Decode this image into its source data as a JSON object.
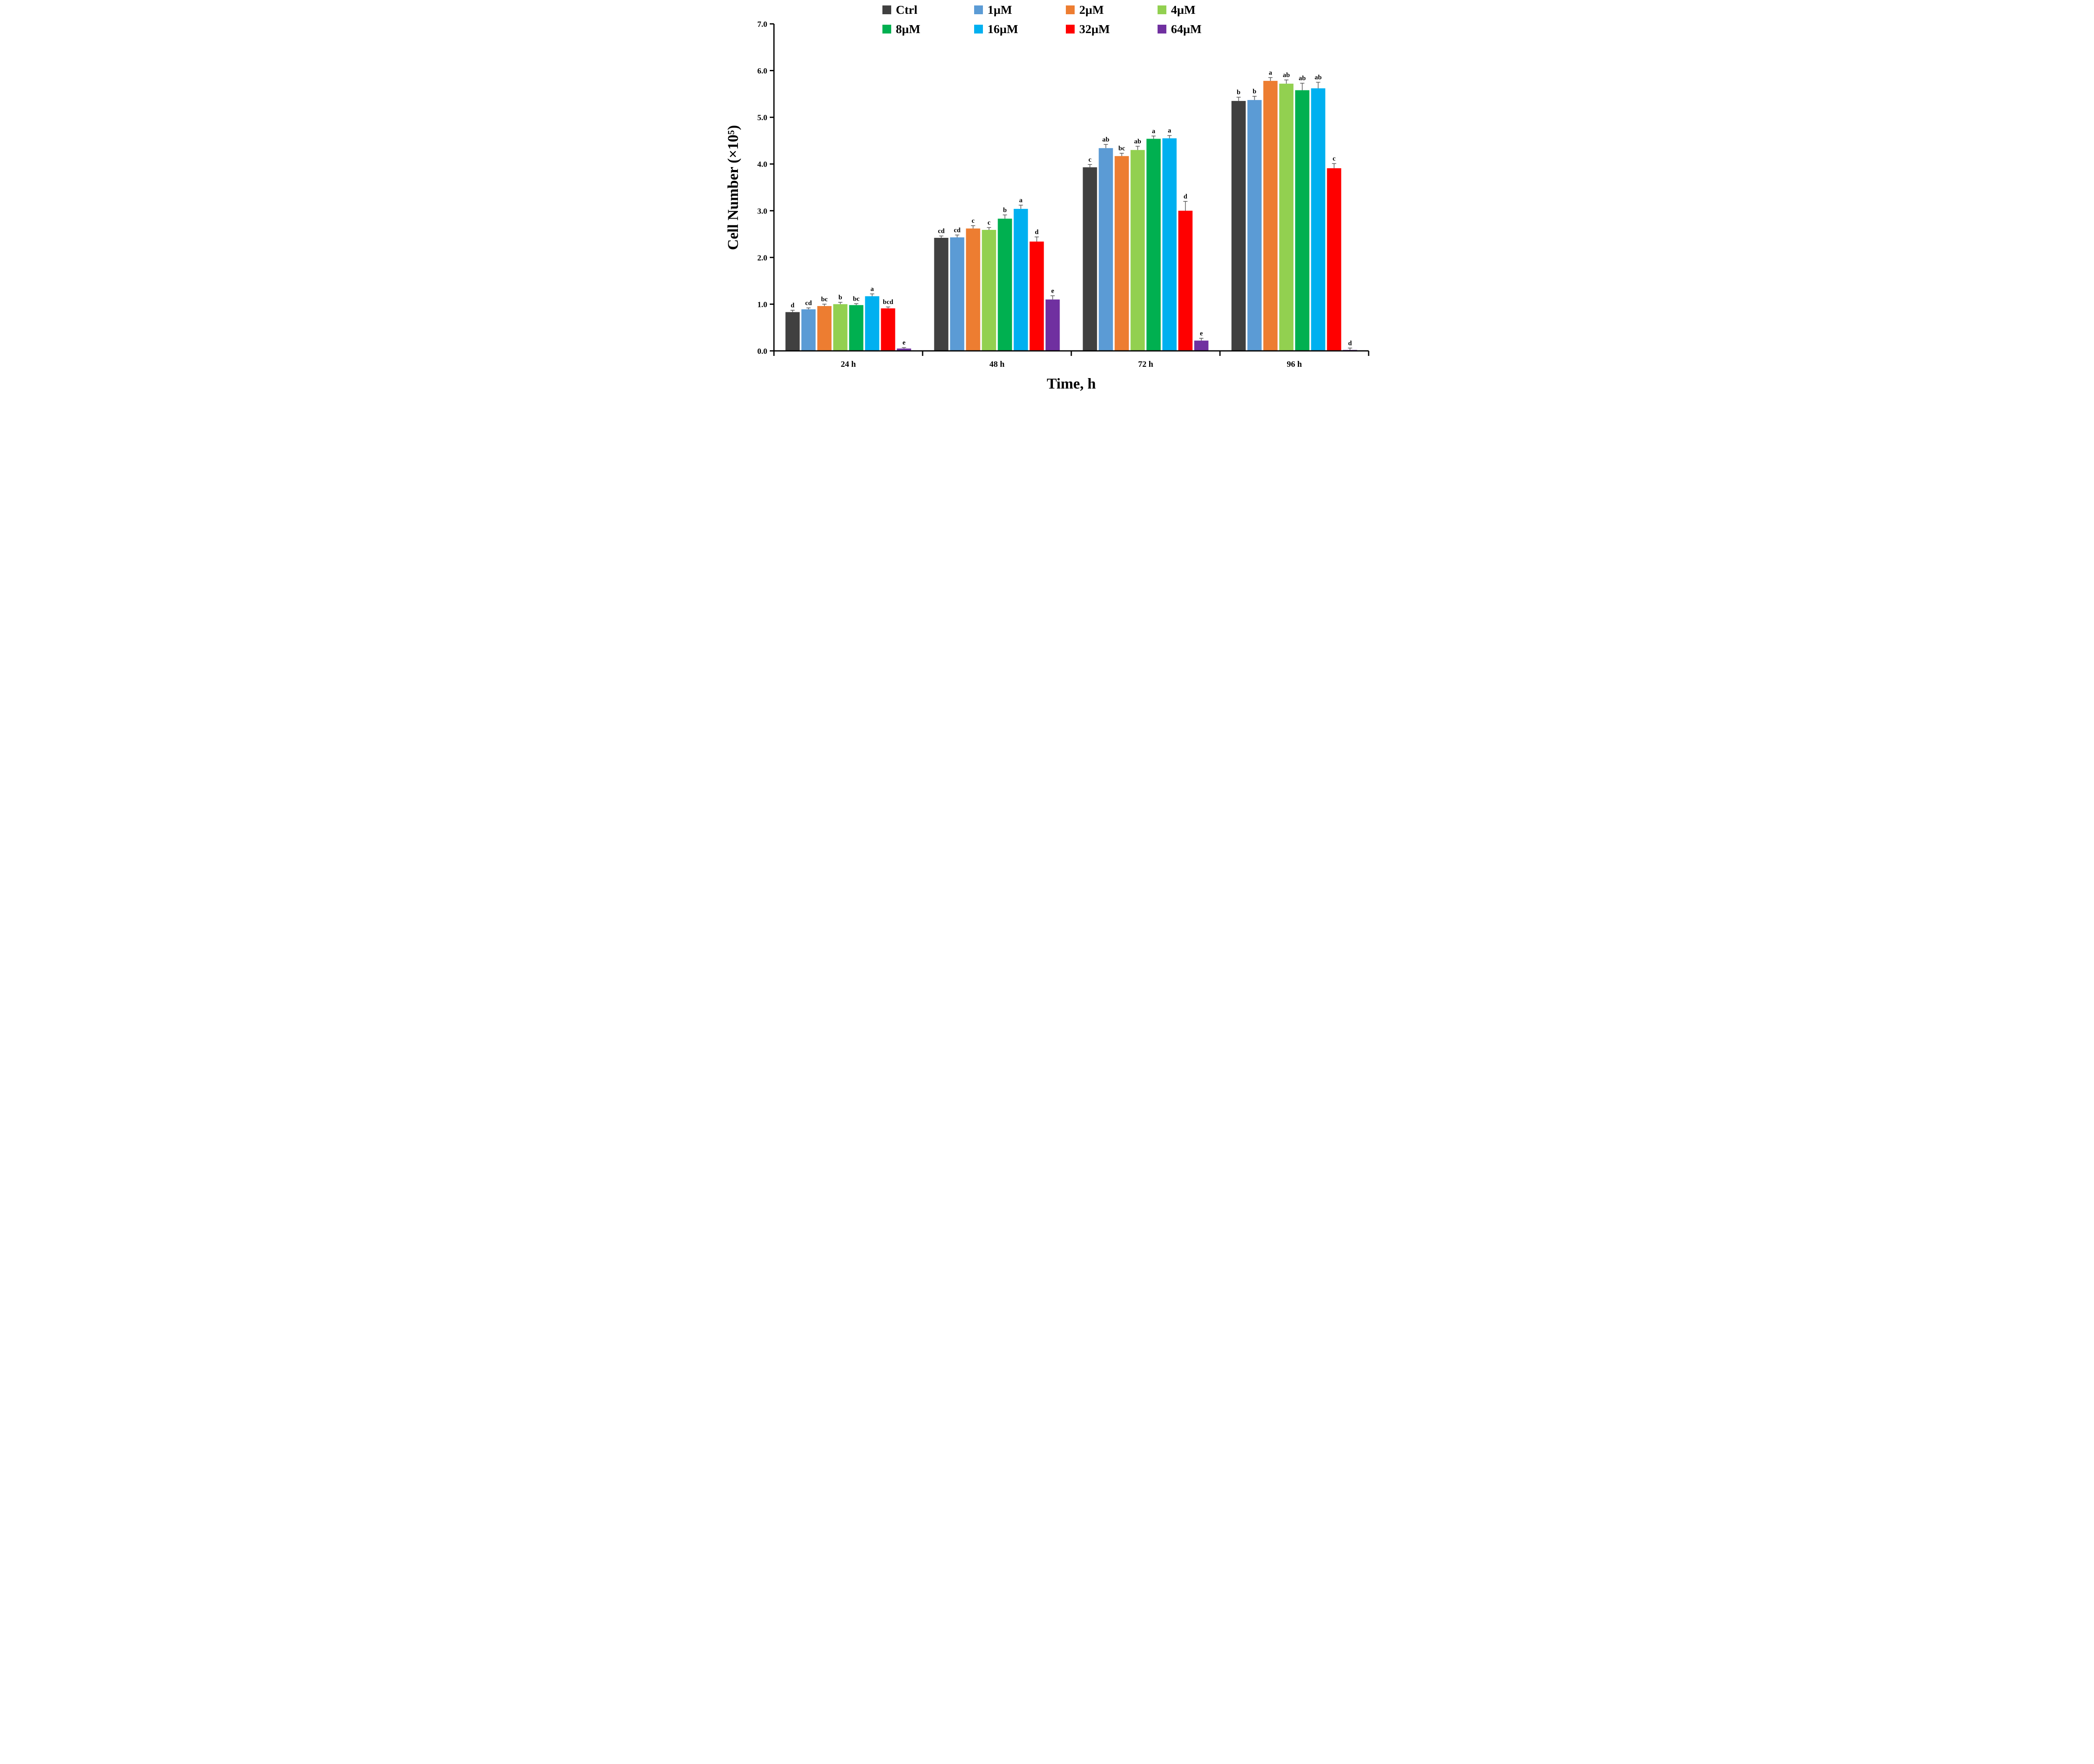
{
  "chart_data": {
    "type": "bar",
    "title": "",
    "xlabel": "Time, h",
    "ylabel": "Cell Number (×10⁵)",
    "ylim": [
      0,
      7
    ],
    "ytick_step": 1,
    "grid": false,
    "legend_position": "top",
    "legend_rows": [
      [
        "Ctrl",
        "1µM",
        "2µM",
        "4µM"
      ],
      [
        "8µM",
        "16µM",
        "32µM",
        "64µM"
      ]
    ],
    "categories": [
      "24 h",
      "48 h",
      "72 h",
      "96 h"
    ],
    "series": [
      {
        "name": "Ctrl",
        "color": "#404040",
        "values": [
          0.83,
          2.42,
          3.93,
          5.35
        ],
        "errors": [
          0.04,
          0.04,
          0.06,
          0.08
        ],
        "letters": [
          "d",
          "cd",
          "c",
          "b"
        ]
      },
      {
        "name": "1µM",
        "color": "#5b9bd5",
        "values": [
          0.89,
          2.43,
          4.34,
          5.37
        ],
        "errors": [
          0.03,
          0.05,
          0.08,
          0.08
        ],
        "letters": [
          "cd",
          "cd",
          "ab",
          "b"
        ]
      },
      {
        "name": "2µM",
        "color": "#ed7d31",
        "values": [
          0.96,
          2.62,
          4.17,
          5.78
        ],
        "errors": [
          0.04,
          0.06,
          0.06,
          0.07
        ],
        "letters": [
          "bc",
          "c",
          "bc",
          "a"
        ]
      },
      {
        "name": "4µM",
        "color": "#92d050",
        "values": [
          1.0,
          2.59,
          4.3,
          5.72
        ],
        "errors": [
          0.04,
          0.05,
          0.08,
          0.08
        ],
        "letters": [
          "b",
          "c",
          "ab",
          "ab"
        ]
      },
      {
        "name": "8µM",
        "color": "#00b050",
        "values": [
          0.98,
          2.83,
          4.54,
          5.58
        ],
        "errors": [
          0.03,
          0.08,
          0.06,
          0.15
        ],
        "letters": [
          "bc",
          "b",
          "a",
          "ab"
        ]
      },
      {
        "name": "16µM",
        "color": "#00b0f0",
        "values": [
          1.17,
          3.04,
          4.55,
          5.62
        ],
        "errors": [
          0.05,
          0.08,
          0.06,
          0.13
        ],
        "letters": [
          "a",
          "a",
          "a",
          "ab"
        ]
      },
      {
        "name": "32µM",
        "color": "#ff0000",
        "values": [
          0.91,
          2.34,
          3.0,
          3.91
        ],
        "errors": [
          0.03,
          0.1,
          0.2,
          0.1
        ],
        "letters": [
          "bcd",
          "d",
          "d",
          "c"
        ]
      },
      {
        "name": "64µM",
        "color": "#7030a0",
        "values": [
          0.05,
          1.1,
          0.22,
          0.02
        ],
        "errors": [
          0.02,
          0.08,
          0.05,
          0.04
        ],
        "letters": [
          "e",
          "e",
          "e",
          "d"
        ]
      }
    ],
    "ytick_labels": [
      "0.0",
      "1.0",
      "2.0",
      "3.0",
      "4.0",
      "5.0",
      "6.0",
      "7.0"
    ]
  }
}
